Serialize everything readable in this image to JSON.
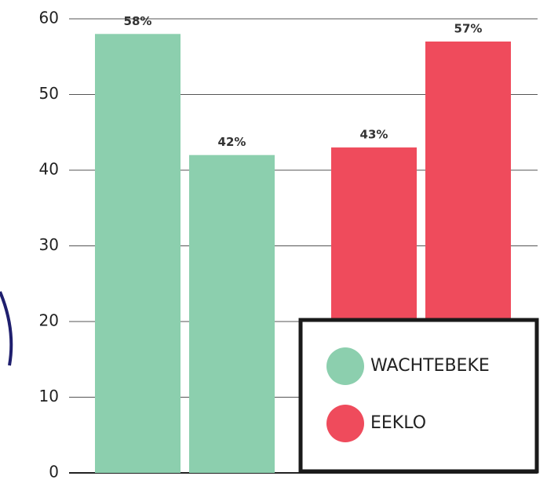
{
  "chart_data": {
    "type": "bar",
    "categories": [
      null,
      null,
      null,
      null
    ],
    "series": [
      {
        "name": "WACHTEBEKE",
        "color": "#8ccfae",
        "values": [
          58,
          42,
          null,
          null
        ],
        "value_labels": [
          "58%",
          "42%",
          null,
          null
        ]
      },
      {
        "name": "EEKLO",
        "color": "#ef4b5c",
        "values": [
          null,
          null,
          43,
          57
        ],
        "value_labels": [
          null,
          null,
          "43%",
          "57%"
        ]
      }
    ],
    "ylim": [
      0,
      60
    ],
    "yticks": [
      0,
      10,
      20,
      30,
      40,
      50,
      60
    ],
    "grid": true,
    "legend": "lower right"
  }
}
